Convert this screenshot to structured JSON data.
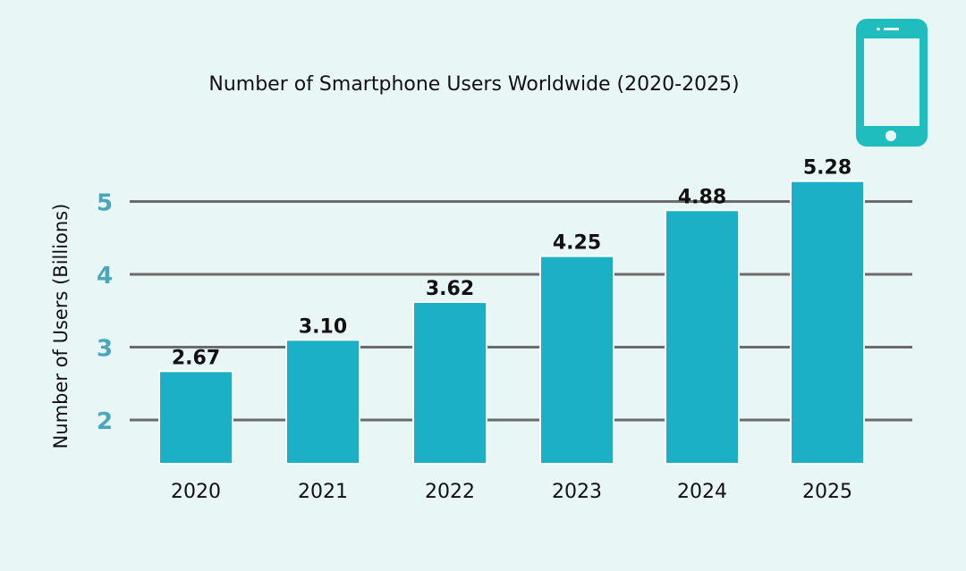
{
  "chart_data": {
    "type": "bar",
    "title": "Number of Smartphone Users Worldwide (2020-2025)",
    "xlabel": "",
    "ylabel": "Number of Users (Billions)",
    "categories": [
      "2020",
      "2021",
      "2022",
      "2023",
      "2024",
      "2025"
    ],
    "values": [
      2.67,
      3.1,
      3.62,
      4.25,
      4.88,
      5.28
    ],
    "data_labels": [
      "2.67",
      "3.10",
      "3.62",
      "4.25",
      "4.88",
      "5.28"
    ],
    "yticks": [
      "2",
      "3",
      "4",
      "5"
    ],
    "ylim": [
      1.4,
      5.5
    ],
    "grid": true,
    "bar_color": "#1cb0c6",
    "ytick_color": "#4aa6bd",
    "background": "#e8f6f6",
    "icon": "smartphone-icon",
    "icon_color": "#20bdbf"
  }
}
